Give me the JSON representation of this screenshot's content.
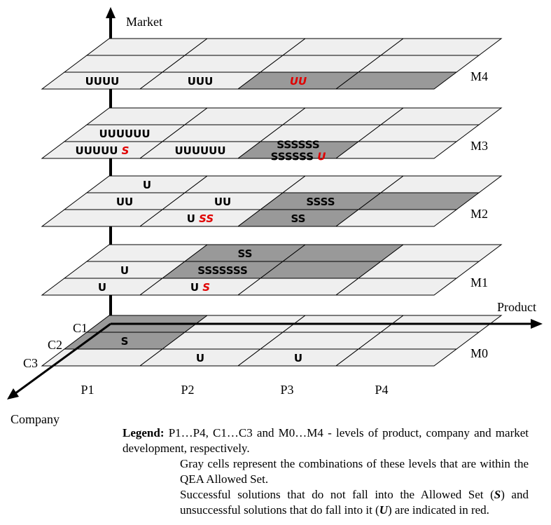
{
  "axes": {
    "vertical": "Market",
    "horizontal": "Product",
    "depth": "Company"
  },
  "product_labels": [
    "P1",
    "P2",
    "P3",
    "P4"
  ],
  "company_labels": [
    "C1",
    "C2",
    "C3"
  ],
  "planes": [
    {
      "name": "M4",
      "gray": [
        [
          0,
          2
        ],
        [
          0,
          3
        ]
      ],
      "cells": [
        {
          "row": 0,
          "col": 0,
          "parts": [
            {
              "t": "UUUU",
              "red": false
            }
          ]
        },
        {
          "row": 0,
          "col": 1,
          "parts": [
            {
              "t": "UUU",
              "red": false
            }
          ]
        },
        {
          "row": 0,
          "col": 2,
          "parts": [
            {
              "t": "UU",
              "red": true
            }
          ]
        }
      ]
    },
    {
      "name": "M3",
      "gray": [
        [
          0,
          2
        ]
      ],
      "cells": [
        {
          "row": 1,
          "col": 0,
          "parts": [
            {
              "t": "UUUUUU",
              "red": false
            }
          ]
        },
        {
          "row": 0,
          "col": 0,
          "parts": [
            {
              "t": "UUUUU ",
              "red": false
            },
            {
              "t": "S",
              "red": true
            }
          ]
        },
        {
          "row": 0,
          "col": 1,
          "parts": [
            {
              "t": "UUUUUU",
              "red": false
            }
          ]
        },
        {
          "row": 0,
          "col": 2,
          "parts": [
            {
              "t": "SSSSSS",
              "red": false
            }
          ],
          "line2": [
            {
              "t": "SSSSSS ",
              "red": false
            },
            {
              "t": "U",
              "red": true
            }
          ]
        }
      ]
    },
    {
      "name": "M2",
      "gray": [
        [
          1,
          2
        ],
        [
          1,
          3
        ],
        [
          0,
          2
        ]
      ],
      "cells": [
        {
          "row": 2,
          "col": 0,
          "parts": [
            {
              "t": "U",
              "red": false
            }
          ]
        },
        {
          "row": 1,
          "col": 0,
          "parts": [
            {
              "t": "UU",
              "red": false
            }
          ]
        },
        {
          "row": 1,
          "col": 1,
          "parts": [
            {
              "t": "UU",
              "red": false
            }
          ]
        },
        {
          "row": 1,
          "col": 2,
          "parts": [
            {
              "t": "SSSS",
              "red": false
            }
          ]
        },
        {
          "row": 0,
          "col": 1,
          "parts": [
            {
              "t": "U ",
              "red": false
            },
            {
              "t": "SS",
              "red": true
            }
          ]
        },
        {
          "row": 0,
          "col": 2,
          "parts": [
            {
              "t": "SS",
              "red": false
            }
          ]
        }
      ]
    },
    {
      "name": "M1",
      "gray": [
        [
          2,
          1
        ],
        [
          2,
          2
        ],
        [
          1,
          1
        ],
        [
          1,
          2
        ]
      ],
      "cells": [
        {
          "row": 2,
          "col": 1,
          "parts": [
            {
              "t": "SS",
              "red": false
            }
          ]
        },
        {
          "row": 1,
          "col": 0,
          "parts": [
            {
              "t": "U",
              "red": false
            }
          ]
        },
        {
          "row": 1,
          "col": 1,
          "parts": [
            {
              "t": "SSSSSSS",
              "red": false
            }
          ]
        },
        {
          "row": 0,
          "col": 0,
          "parts": [
            {
              "t": "U",
              "red": false
            }
          ]
        },
        {
          "row": 0,
          "col": 1,
          "parts": [
            {
              "t": "U ",
              "red": false
            },
            {
              "t": "S",
              "red": true
            }
          ]
        }
      ]
    },
    {
      "name": "M0",
      "gray": [
        [
          2,
          0
        ],
        [
          1,
          0
        ]
      ],
      "cells": [
        {
          "row": 1,
          "col": 0,
          "parts": [
            {
              "t": "S",
              "red": false
            }
          ]
        },
        {
          "row": 0,
          "col": 1,
          "parts": [
            {
              "t": "U",
              "red": false
            }
          ]
        },
        {
          "row": 0,
          "col": 2,
          "parts": [
            {
              "t": "U",
              "red": false
            }
          ]
        }
      ]
    }
  ],
  "colors": {
    "cell_fill": "#efefef",
    "gray_fill": "#999999",
    "grid_line": "#000000",
    "red": "#e00000"
  },
  "legend": {
    "lead": "Legend:",
    "line1": "P1…P4, C1…C3 and M0…M4 - levels of product, company and market development, respectively.",
    "line2": "Gray cells represent the combinations of these levels that are within the QEA Allowed Set.",
    "line3a": "Successful solutions that do not fall into the Allowed Set (",
    "line3s": "S",
    "line3b": ") and unsuccessful solutions that do fall into it (",
    "line3u": "U",
    "line3c": ") are indicated in red."
  }
}
